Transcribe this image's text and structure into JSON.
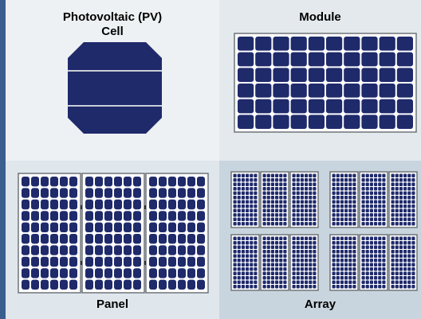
{
  "labels": {
    "cell_line1": "Photovoltaic (PV)",
    "cell_line2": "Cell",
    "module": "Module",
    "panel": "Panel",
    "array": "Array"
  },
  "colors": {
    "accent": "#3a5f8f",
    "cell_fill": "#1f2a6b",
    "cell_line": "#c9cdd6",
    "frame": "#6f7478"
  }
}
